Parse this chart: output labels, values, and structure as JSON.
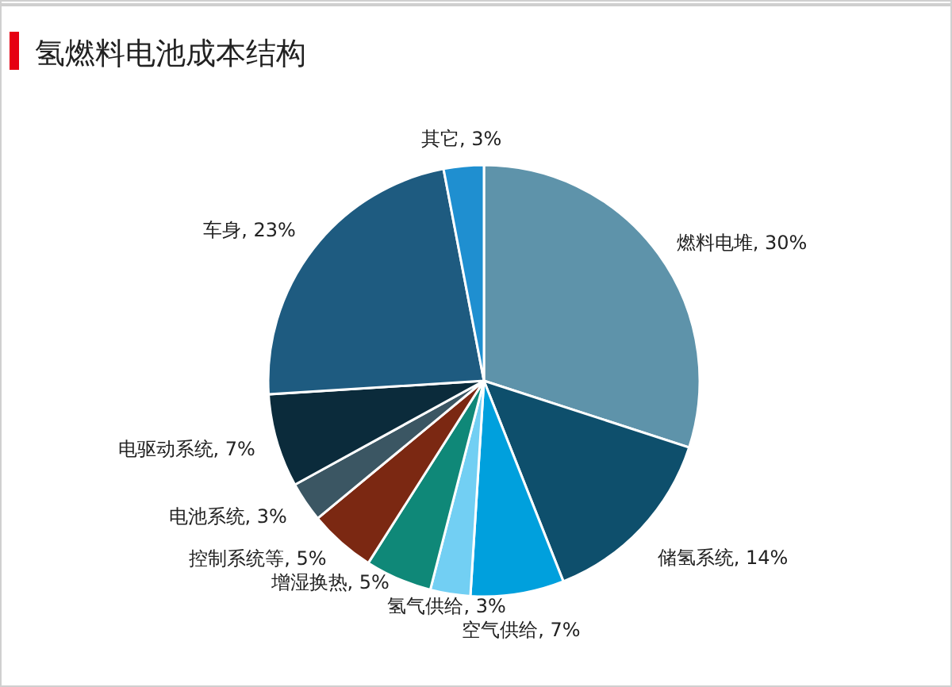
{
  "chart_data": {
    "type": "pie",
    "title": "氢燃料电池成本结构",
    "categories": [
      "燃料电堆",
      "储氢系统",
      "空气供给",
      "氢气供给",
      "增湿换热",
      "控制系统等",
      "电池系统",
      "电驱动系统",
      "车身",
      "其它"
    ],
    "values": [
      30,
      14,
      7,
      3,
      5,
      5,
      3,
      7,
      23,
      3
    ],
    "value_labels": [
      ", 30%",
      ", 14%",
      ", 7%",
      ", 3%",
      ", 5%",
      ", 5%",
      ", 3%",
      ", 7%",
      ", 23%",
      ", 3%"
    ],
    "colors": [
      "#5e93aa",
      "#0e4f6c",
      "#00a0dd",
      "#72cff3",
      "#0f8878",
      "#7b2812",
      "#3b5663",
      "#0b2b3b",
      "#1e5b80",
      "#1f8fd0"
    ],
    "legend": false
  }
}
